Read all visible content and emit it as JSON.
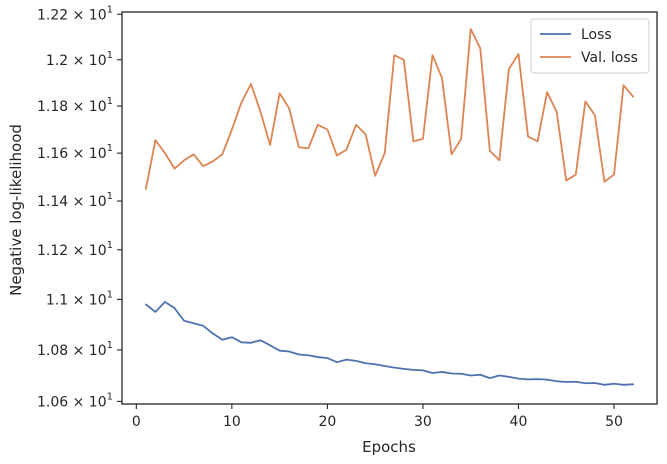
{
  "chart_data": {
    "type": "line",
    "xlabel": "Epochs",
    "ylabel": "Negative log-likelihood",
    "xlim": [
      -1.5,
      54.5
    ],
    "ylim": [
      10.59,
      12.21
    ],
    "log_y": true,
    "grid": false,
    "legend_position": "top-right",
    "x_ticks": [
      0,
      10,
      20,
      30,
      40,
      50
    ],
    "y_ticks": [
      {
        "value": 10.6,
        "mantissa": "1.06",
        "base": "10",
        "exp": "1"
      },
      {
        "value": 10.8,
        "mantissa": "1.08",
        "base": "10",
        "exp": "1"
      },
      {
        "value": 11.0,
        "mantissa": "1.1",
        "base": "10",
        "exp": "1"
      },
      {
        "value": 11.2,
        "mantissa": "1.12",
        "base": "10",
        "exp": "1"
      },
      {
        "value": 11.4,
        "mantissa": "1.14",
        "base": "10",
        "exp": "1"
      },
      {
        "value": 11.6,
        "mantissa": "1.16",
        "base": "10",
        "exp": "1"
      },
      {
        "value": 11.8,
        "mantissa": "1.18",
        "base": "10",
        "exp": "1"
      },
      {
        "value": 12.0,
        "mantissa": "1.2",
        "base": "10",
        "exp": "1"
      },
      {
        "value": 12.2,
        "mantissa": "1.22",
        "base": "10",
        "exp": "1"
      }
    ],
    "x": [
      1,
      2,
      3,
      4,
      5,
      6,
      7,
      8,
      9,
      10,
      11,
      12,
      13,
      14,
      15,
      16,
      17,
      18,
      19,
      20,
      21,
      22,
      23,
      24,
      25,
      26,
      27,
      28,
      29,
      30,
      31,
      32,
      33,
      34,
      35,
      36,
      37,
      38,
      39,
      40,
      41,
      42,
      43,
      44,
      45,
      46,
      47,
      48,
      49,
      50,
      51,
      52
    ],
    "series": [
      {
        "name": "Loss",
        "color": "#4c72b0",
        "values": [
          10.98,
          10.95,
          10.99,
          10.965,
          10.915,
          10.905,
          10.895,
          10.865,
          10.84,
          10.85,
          10.83,
          10.828,
          10.838,
          10.818,
          10.797,
          10.794,
          10.782,
          10.779,
          10.772,
          10.768,
          10.752,
          10.762,
          10.757,
          10.748,
          10.744,
          10.737,
          10.731,
          10.726,
          10.722,
          10.72,
          10.71,
          10.714,
          10.708,
          10.707,
          10.7,
          10.703,
          10.69,
          10.7,
          10.695,
          10.688,
          10.685,
          10.686,
          10.684,
          10.678,
          10.675,
          10.676,
          10.67,
          10.671,
          10.664,
          10.668,
          10.664,
          10.666
        ]
      },
      {
        "name": "Val. loss",
        "color": "#dd8452",
        "values": [
          11.45,
          11.655,
          11.6,
          11.535,
          11.57,
          11.595,
          11.545,
          11.565,
          11.595,
          11.7,
          11.815,
          11.895,
          11.775,
          11.635,
          11.855,
          11.79,
          11.625,
          11.62,
          11.72,
          11.7,
          11.59,
          11.615,
          11.72,
          11.68,
          11.505,
          11.6,
          12.02,
          12.0,
          11.65,
          11.66,
          12.02,
          11.92,
          11.595,
          11.66,
          12.135,
          12.05,
          11.61,
          11.57,
          11.96,
          12.025,
          11.67,
          11.65,
          11.86,
          11.775,
          11.485,
          11.51,
          11.82,
          11.76,
          11.48,
          11.51,
          11.89,
          11.84
        ]
      }
    ]
  }
}
